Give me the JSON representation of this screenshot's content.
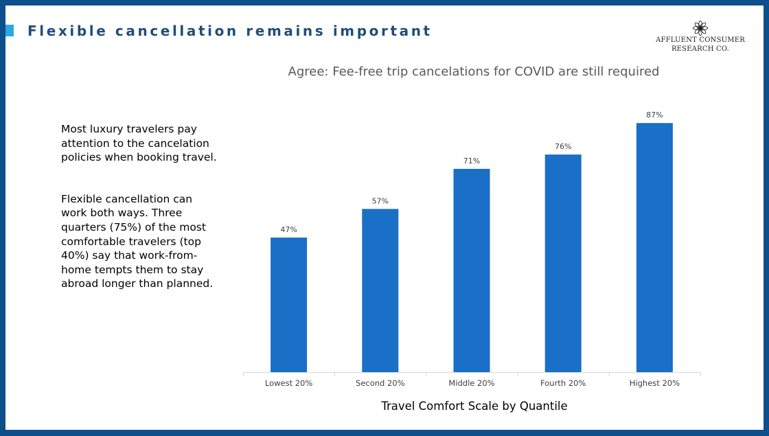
{
  "slide": {
    "title": "Flexible cancellation remains important",
    "logo": {
      "line1": "AFFLUENT CONSUMER",
      "line2": "RESEARCH CO."
    },
    "paragraphs": [
      "Most luxury travelers pay attention to the cancelation policies when booking travel.",
      "Flexible cancellation can work both ways. Three quarters (75%) of the most comfortable travelers (top 40%) say that work-from-home tempts them to stay abroad longer than planned."
    ]
  },
  "colors": {
    "frame": "#0d4f8b",
    "accent": "#29a9df",
    "title": "#1f4e79",
    "bar": "#1a6fc6"
  },
  "chart_data": {
    "type": "bar",
    "title": "Agree: Fee-free trip cancelations for COVID are still required",
    "xlabel": "Travel Comfort Scale by Quantile",
    "ylabel": "",
    "categories": [
      "Lowest 20%",
      "Second 20%",
      "Middle 20%",
      "Fourth 20%",
      "Highest 20%"
    ],
    "values": [
      47,
      57,
      71,
      76,
      87
    ],
    "value_labels": [
      "47%",
      "57%",
      "71%",
      "76%",
      "87%"
    ],
    "ylim": [
      0,
      100
    ],
    "grid": false,
    "legend": "none"
  }
}
